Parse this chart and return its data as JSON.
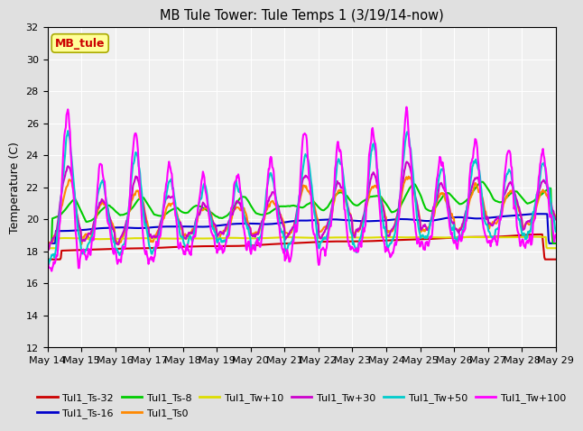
{
  "title": "MB Tule Tower: Tule Temps 1 (3/19/14-now)",
  "ylabel": "Temperature (C)",
  "ylim": [
    12,
    32
  ],
  "yticks": [
    12,
    14,
    16,
    18,
    20,
    22,
    24,
    26,
    28,
    30,
    32
  ],
  "legend_label": "MB_tule",
  "series_labels": [
    "Tul1_Ts-32",
    "Tul1_Ts-16",
    "Tul1_Ts-8",
    "Tul1_Ts0",
    "Tul1_Tw+10",
    "Tul1_Tw+30",
    "Tul1_Tw+50",
    "Tul1_Tw+100"
  ],
  "series_colors": [
    "#cc0000",
    "#0000cc",
    "#00cc00",
    "#ff8800",
    "#dddd00",
    "#cc00cc",
    "#00cccc",
    "#ff00ff"
  ],
  "series_widths": [
    1.5,
    1.5,
    1.5,
    1.5,
    1.5,
    1.5,
    1.5,
    1.5
  ],
  "bg_color": "#e0e0e0",
  "plot_bg": "#f0f0f0",
  "grid_color": "#ffffff",
  "annotation_box_color": "#ffff99",
  "annotation_text_color": "#cc0000",
  "x_start_day": 14,
  "x_end_day": 29,
  "x_tick_days": [
    14,
    15,
    16,
    17,
    18,
    19,
    20,
    21,
    22,
    23,
    24,
    25,
    26,
    27,
    28,
    29
  ]
}
